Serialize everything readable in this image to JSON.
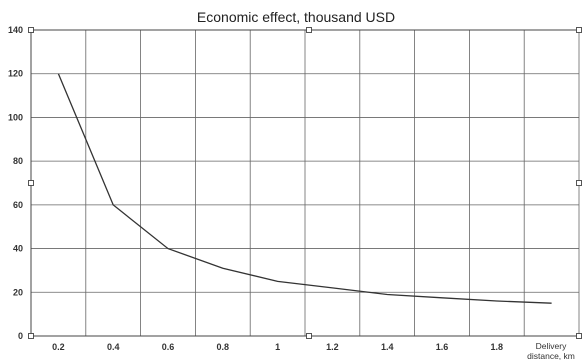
{
  "chart_data": {
    "type": "line",
    "title": "Economic effect, thousand USD",
    "xlabel_line1": "Delivery",
    "xlabel_line2": "distance, km",
    "ylabel": "",
    "x": [
      0.2,
      0.4,
      0.6,
      0.8,
      1,
      1.2,
      1.4,
      1.6,
      1.8,
      2.0
    ],
    "x_tick_labels": [
      "0.2",
      "0.4",
      "0.6",
      "0.8",
      "1",
      "1.2",
      "1.4",
      "1.6",
      "1.8"
    ],
    "y_ticks": [
      0,
      20,
      40,
      60,
      80,
      100,
      120,
      140
    ],
    "ylim": [
      0,
      140
    ],
    "grid": true,
    "series": [
      {
        "values": [
          120,
          60,
          40,
          31,
          25,
          22,
          19,
          17.5,
          16,
          15
        ]
      }
    ],
    "colors": {
      "line": "#333333",
      "grid": "#666666"
    }
  }
}
